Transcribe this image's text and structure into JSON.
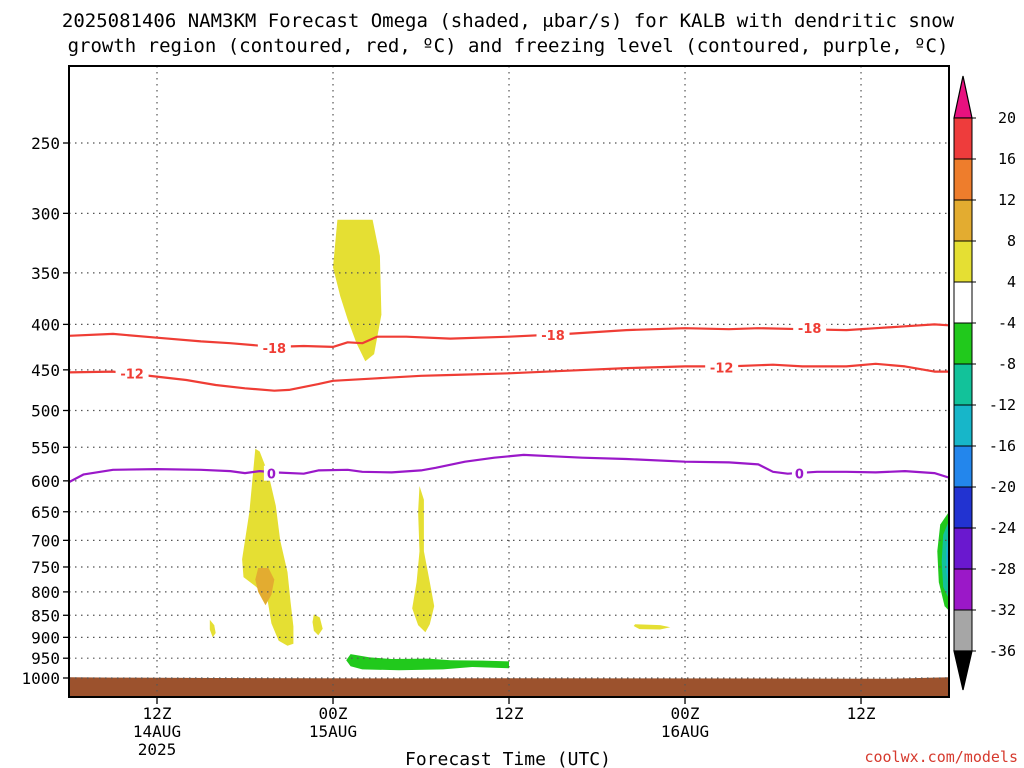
{
  "title_line1": "2025081406 NAM3KM Forecast Omega (shaded, μbar/s) for KALB with dendritic snow",
  "title_line2": "growth region (contoured, red, ºC) and freezing level (contoured, purple, ºC)",
  "credit": "coolwx.com/models",
  "colors": {
    "background": "#ffffff",
    "ground": "#9c522d",
    "dendritic_contour": "#ef3d35",
    "freezing_contour": "#9a18c9",
    "grid": "#555555"
  },
  "chart_data": {
    "type": "heatmap",
    "xlabel": "Forecast Time (UTC)",
    "ylabel": "",
    "x_range_hours_from_2025-08-14_06Z": [
      0,
      60
    ],
    "y_range_hPa": [
      200,
      1025
    ],
    "y_scale": "log-pressure",
    "yticks": [
      250,
      300,
      350,
      400,
      450,
      500,
      550,
      600,
      650,
      700,
      750,
      800,
      850,
      900,
      950,
      1000
    ],
    "xticks": [
      {
        "label": "12Z",
        "sub": "14AUG",
        "sub2": "2025",
        "t": 6
      },
      {
        "label": "00Z",
        "sub": "15AUG",
        "sub2": "",
        "t": 18
      },
      {
        "label": "12Z",
        "sub": "",
        "sub2": "",
        "t": 30
      },
      {
        "label": "00Z",
        "sub": "16AUG",
        "sub2": "",
        "t": 42
      },
      {
        "label": "12Z",
        "sub": "",
        "sub2": "",
        "t": 54
      }
    ],
    "grid": true,
    "colorbar": {
      "levels": [
        20,
        16,
        12,
        8,
        4,
        -4,
        -8,
        -12,
        -16,
        -20,
        -24,
        -28,
        -32,
        -36
      ],
      "colors": [
        "#e8117f",
        "#ee3c3c",
        "#ee7d2c",
        "#e3ac30",
        "#e5df33",
        "#ffffff",
        "#21c91c",
        "#12c29a",
        "#17b6c9",
        "#2386ec",
        "#2233d1",
        "#6a18cf",
        "#9b18c8",
        "#a6a6a6",
        "#000000"
      ]
    },
    "contours": [
      {
        "name": "-18",
        "points": [
          [
            0,
            412
          ],
          [
            3,
            410
          ],
          [
            6,
            414
          ],
          [
            9,
            418
          ],
          [
            11,
            420
          ],
          [
            14,
            424
          ],
          [
            16,
            423
          ],
          [
            18,
            424
          ],
          [
            19,
            419
          ],
          [
            20,
            420
          ],
          [
            21,
            413
          ],
          [
            23,
            413
          ],
          [
            26,
            415
          ],
          [
            30,
            413
          ],
          [
            34,
            410
          ],
          [
            38,
            406
          ],
          [
            42,
            404
          ],
          [
            45,
            405
          ],
          [
            47,
            404
          ],
          [
            50,
            405
          ],
          [
            53,
            406
          ],
          [
            55,
            404
          ],
          [
            57,
            402
          ],
          [
            59,
            400
          ],
          [
            60,
            401
          ]
        ],
        "labels": [
          {
            "t": 14,
            "p": 425,
            "text": "-18"
          },
          {
            "t": 33,
            "p": 411,
            "text": "-18"
          },
          {
            "t": 50.5,
            "p": 404,
            "text": "-18"
          }
        ]
      },
      {
        "name": "-12",
        "points": [
          [
            0,
            453
          ],
          [
            3,
            452
          ],
          [
            5,
            456
          ],
          [
            8,
            462
          ],
          [
            10,
            468
          ],
          [
            12,
            472
          ],
          [
            14,
            475
          ],
          [
            15,
            474
          ],
          [
            17,
            467
          ],
          [
            18,
            463
          ],
          [
            21,
            460
          ],
          [
            24,
            457
          ],
          [
            26,
            456
          ],
          [
            30,
            454
          ],
          [
            34,
            451
          ],
          [
            38,
            448
          ],
          [
            42,
            446
          ],
          [
            45,
            446
          ],
          [
            48,
            444
          ],
          [
            50,
            446
          ],
          [
            53,
            446
          ],
          [
            55,
            443
          ],
          [
            57,
            446
          ],
          [
            59,
            452
          ],
          [
            60,
            452
          ]
        ],
        "labels": [
          {
            "t": 4.3,
            "p": 454,
            "text": "-12"
          },
          {
            "t": 44.5,
            "p": 447,
            "text": "-12"
          }
        ]
      },
      {
        "name": "0",
        "points": [
          [
            0,
            602
          ],
          [
            1,
            590
          ],
          [
            3,
            583
          ],
          [
            6,
            582
          ],
          [
            9,
            583
          ],
          [
            11,
            585
          ],
          [
            12,
            588
          ],
          [
            13,
            585
          ],
          [
            14,
            587
          ],
          [
            16,
            589
          ],
          [
            17,
            584
          ],
          [
            19,
            583
          ],
          [
            20,
            586
          ],
          [
            22,
            587
          ],
          [
            24,
            584
          ],
          [
            25,
            580
          ],
          [
            27,
            571
          ],
          [
            29,
            565
          ],
          [
            31,
            561
          ],
          [
            33,
            563
          ],
          [
            35,
            565
          ],
          [
            38,
            567
          ],
          [
            42,
            571
          ],
          [
            45,
            572
          ],
          [
            47,
            575
          ],
          [
            48,
            586
          ],
          [
            49,
            589
          ],
          [
            51,
            586
          ],
          [
            53,
            586
          ],
          [
            55,
            587
          ],
          [
            57,
            585
          ],
          [
            59,
            588
          ],
          [
            60,
            595
          ]
        ],
        "labels": [
          {
            "t": 13.8,
            "p": 589,
            "text": "0"
          },
          {
            "t": 49.8,
            "p": 589,
            "text": "0"
          }
        ]
      }
    ],
    "shaded_regions": [
      {
        "level": "4 to 8",
        "color": "#e5df33",
        "points": [
          [
            18.3,
            305
          ],
          [
            20.7,
            305
          ],
          [
            21.2,
            335
          ],
          [
            21.3,
            390
          ],
          [
            20.8,
            432
          ],
          [
            20.2,
            440
          ],
          [
            19.6,
            420
          ],
          [
            19,
            395
          ],
          [
            18.5,
            372
          ],
          [
            18.0,
            345
          ]
        ]
      },
      {
        "level": "4 to 8",
        "color": "#e5df33",
        "points": [
          [
            12.7,
            552
          ],
          [
            13.0,
            556
          ],
          [
            13.6,
            590
          ],
          [
            14.1,
            640
          ],
          [
            14.4,
            700
          ],
          [
            14.9,
            760
          ],
          [
            15.1,
            820
          ],
          [
            15.3,
            875
          ],
          [
            15.3,
            915
          ],
          [
            14.9,
            920
          ],
          [
            14.3,
            908
          ],
          [
            13.8,
            868
          ],
          [
            13.5,
            810
          ],
          [
            12.7,
            788
          ],
          [
            11.9,
            770
          ],
          [
            11.8,
            735
          ],
          [
            12.0,
            700
          ],
          [
            12.3,
            650
          ],
          [
            12.5,
            600
          ]
        ]
      },
      {
        "level": "8 to 12",
        "color": "#e3ac30",
        "points": [
          [
            12.9,
            752
          ],
          [
            13.6,
            752
          ],
          [
            14.0,
            775
          ],
          [
            13.8,
            806
          ],
          [
            13.4,
            828
          ],
          [
            12.9,
            800
          ],
          [
            12.7,
            775
          ]
        ]
      },
      {
        "level": "4 to 8",
        "color": "#e5df33",
        "points": [
          [
            16.7,
            848
          ],
          [
            17.1,
            855
          ],
          [
            17.3,
            880
          ],
          [
            17.0,
            895
          ],
          [
            16.7,
            885
          ],
          [
            16.6,
            865
          ]
        ]
      },
      {
        "level": "4 to 8",
        "color": "#e5df33",
        "points": [
          [
            23.9,
            608
          ],
          [
            24.2,
            630
          ],
          [
            24.2,
            720
          ],
          [
            24.6,
            780
          ],
          [
            24.9,
            830
          ],
          [
            24.6,
            870
          ],
          [
            24.3,
            888
          ],
          [
            23.8,
            872
          ],
          [
            23.4,
            835
          ],
          [
            23.7,
            780
          ],
          [
            23.9,
            720
          ],
          [
            23.8,
            650
          ]
        ]
      },
      {
        "level": "4 to 8",
        "color": "#e5df33",
        "points": [
          [
            9.6,
            860
          ],
          [
            9.9,
            872
          ],
          [
            10.0,
            890
          ],
          [
            9.8,
            900
          ],
          [
            9.6,
            882
          ]
        ]
      },
      {
        "level": "4 to 8",
        "color": "#e5df33",
        "points": [
          [
            38.6,
            870
          ],
          [
            40.3,
            872
          ],
          [
            41.0,
            877
          ],
          [
            40.3,
            882
          ],
          [
            38.9,
            881
          ],
          [
            38.5,
            874
          ]
        ]
      },
      {
        "level": "-4 to -8",
        "color": "#21c91c",
        "points": [
          [
            19.2,
            940
          ],
          [
            20.5,
            948
          ],
          [
            22,
            952
          ],
          [
            24.5,
            951
          ],
          [
            26,
            955
          ],
          [
            28.2,
            956
          ],
          [
            30,
            958
          ],
          [
            30,
            975
          ],
          [
            27.5,
            972
          ],
          [
            25.5,
            978
          ],
          [
            22.5,
            980
          ],
          [
            20,
            978
          ],
          [
            19.2,
            970
          ],
          [
            18.9,
            955
          ]
        ]
      },
      {
        "level": "-4 to -8",
        "color": "#21c91c",
        "points": [
          [
            60,
            650
          ],
          [
            59.4,
            672
          ],
          [
            59.2,
            720
          ],
          [
            59.3,
            780
          ],
          [
            59.7,
            830
          ],
          [
            60,
            840
          ]
        ]
      },
      {
        "level": "-8 to -12",
        "color": "#12c29a",
        "points": [
          [
            60,
            665
          ],
          [
            59.6,
            690
          ],
          [
            59.5,
            740
          ],
          [
            59.6,
            790
          ],
          [
            60,
            815
          ]
        ]
      },
      {
        "level": "-12 to -16",
        "color": "#17b6c9",
        "points": [
          [
            60,
            680
          ],
          [
            59.8,
            715
          ],
          [
            59.8,
            760
          ],
          [
            60,
            790
          ]
        ]
      },
      {
        "level": "-16 to -20",
        "color": "#2386ec",
        "points": [
          [
            60,
            695
          ],
          [
            59.9,
            730
          ],
          [
            60,
            765
          ]
        ]
      }
    ],
    "ground": {
      "color": "#9c522d",
      "top_hPa": 1000,
      "points": [
        [
          0,
          998
        ],
        [
          3,
          999
        ],
        [
          6,
          999.5
        ],
        [
          10,
          1000
        ],
        [
          20,
          1001
        ],
        [
          30,
          1000.5
        ],
        [
          40,
          1001
        ],
        [
          50,
          1001.5
        ],
        [
          56,
          1002
        ],
        [
          59,
          999
        ],
        [
          60,
          998
        ]
      ]
    }
  }
}
